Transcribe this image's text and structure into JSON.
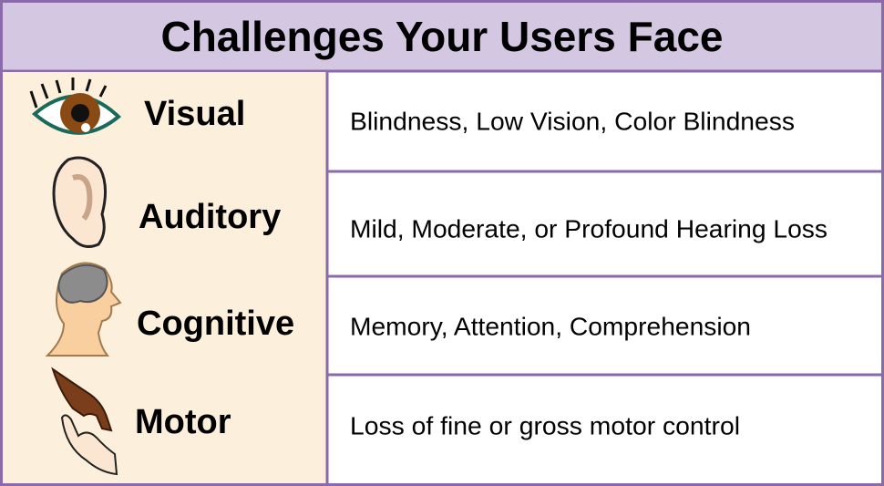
{
  "title": "Challenges Your Users Face",
  "rows": [
    {
      "label": "Visual",
      "description": "Blindness, Low Vision, Color Blindness"
    },
    {
      "label": "Auditory",
      "description": "Mild, Moderate, or Profound Hearing Loss"
    },
    {
      "label": "Cognitive",
      "description": "Memory, Attention, Comprehension"
    },
    {
      "label": "Motor",
      "description": "Loss of fine or gross motor control"
    }
  ]
}
